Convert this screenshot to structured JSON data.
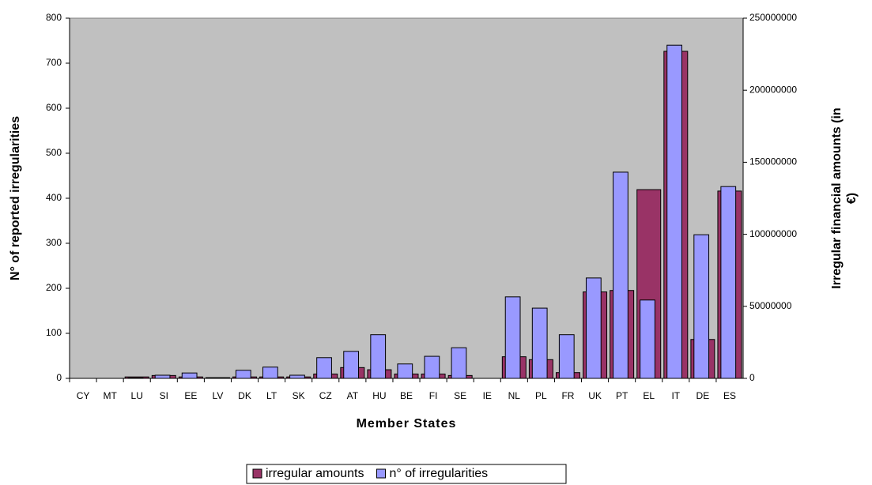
{
  "chart_data": {
    "type": "bar",
    "xlabel": "Member States",
    "ylabel": "N° of reported irregularities",
    "y2label": [
      "Irregular financial amounts (in",
      "€)"
    ],
    "categories": [
      "CY",
      "MT",
      "LU",
      "SI",
      "EE",
      "LV",
      "DK",
      "LT",
      "SK",
      "CZ",
      "AT",
      "HU",
      "BE",
      "FI",
      "SE",
      "IE",
      "NL",
      "PL",
      "FR",
      "UK",
      "PT",
      "EL",
      "IT",
      "DE",
      "ES"
    ],
    "series": [
      {
        "name": "irregular amounts",
        "color": "#993366",
        "axis": "y2",
        "values": [
          0,
          0,
          1000000,
          2000000,
          1000000,
          500000,
          1000000,
          1000000,
          1000000,
          3000000,
          7500000,
          6000000,
          3000000,
          3000000,
          2000000,
          0,
          15000000,
          13000000,
          4000000,
          60000000,
          61000000,
          131000000,
          227000000,
          27000000,
          130000000
        ]
      },
      {
        "name": "n° of irregularities",
        "color": "#9999ff",
        "values": [
          0,
          0,
          1,
          7,
          12,
          1,
          18,
          25,
          7,
          46,
          60,
          97,
          32,
          49,
          68,
          0,
          181,
          156,
          97,
          223,
          458,
          174,
          740,
          319,
          426
        ]
      }
    ],
    "ylim": [
      0,
      800
    ],
    "yticks": [
      0,
      100,
      200,
      300,
      400,
      500,
      600,
      700,
      800
    ],
    "y2lim": [
      0,
      250000000
    ],
    "y2ticks": [
      0,
      50000000,
      100000000,
      150000000,
      200000000,
      250000000
    ],
    "legend": "bottom",
    "plot_background": "#c0c0c0"
  }
}
